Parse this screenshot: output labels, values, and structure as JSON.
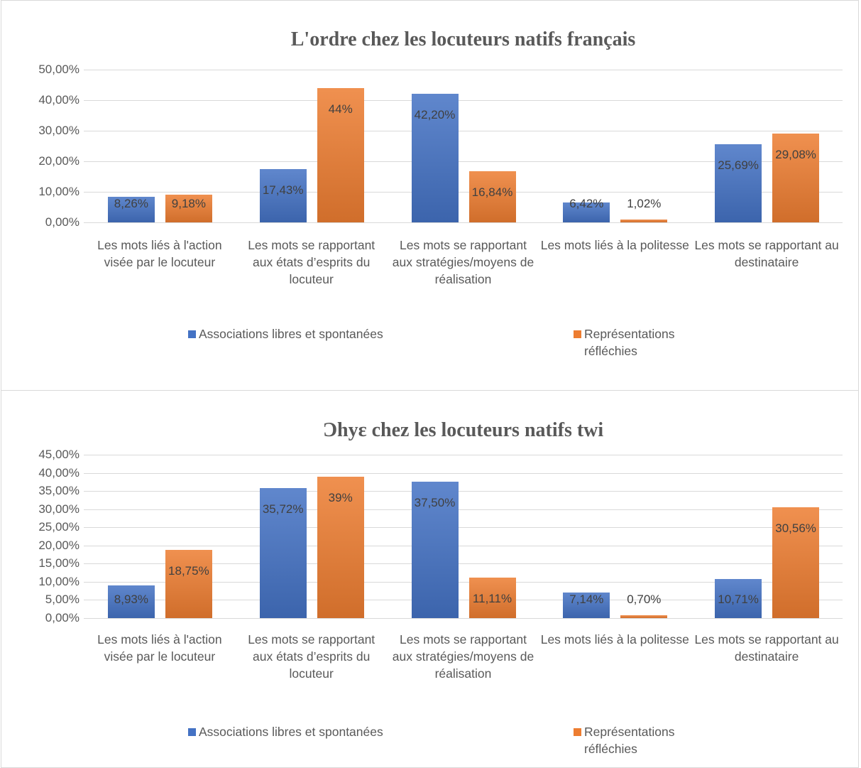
{
  "chart_data": [
    {
      "type": "bar",
      "title": "L'ordre chez les locuteurs natifs français",
      "categories": [
        "Les mots liés à l'action visée par le locuteur",
        "Les mots se rapportant aux états d’esprits du locuteur",
        "Les mots se rapportant aux stratégies/moyens de réalisation",
        "Les mots liés à la politesse",
        "Les mots se rapportant au destinataire"
      ],
      "series": [
        {
          "name": "Associations libres et spontanées",
          "color": "#4472c4",
          "values": [
            8.26,
            17.43,
            42.2,
            6.42,
            25.69
          ],
          "value_labels": [
            "8,26%",
            "17,43%",
            "42,20%",
            "6,42%",
            "25,69%"
          ]
        },
        {
          "name": "Représentations réfléchies",
          "color": "#ed7d31",
          "values": [
            9.18,
            44,
            16.84,
            1.02,
            29.08
          ],
          "value_labels": [
            "9,18%",
            "44%",
            "16,84%",
            "1,02%",
            "29,08%"
          ]
        }
      ],
      "ylim": [
        0,
        50
      ],
      "yticks": [
        {
          "value": 0,
          "label": "0,00%"
        },
        {
          "value": 10,
          "label": "10,00%"
        },
        {
          "value": 20,
          "label": "20,00%"
        },
        {
          "value": 30,
          "label": "30,00%"
        },
        {
          "value": 40,
          "label": "40,00%"
        },
        {
          "value": 50,
          "label": "50,00%"
        }
      ],
      "grid": true,
      "legend": "bottom"
    },
    {
      "type": "bar",
      "title": "Ɔhyɛ chez les locuteurs natifs twi",
      "categories": [
        "Les mots liés à l'action visée par le locuteur",
        "Les mots se rapportant aux états d’esprits du locuteur",
        "Les mots se rapportant aux stratégies/moyens de réalisation",
        "Les mots liés à la politesse",
        "Les mots se rapportant au destinataire"
      ],
      "series": [
        {
          "name": "Associations libres et spontanées",
          "color": "#4472c4",
          "values": [
            8.93,
            35.72,
            37.5,
            7.14,
            10.71
          ],
          "value_labels": [
            "8,93%",
            "35,72%",
            "37,50%",
            "7,14%",
            "10,71%"
          ]
        },
        {
          "name": "Représentations réfléchies",
          "color": "#ed7d31",
          "values": [
            18.75,
            39,
            11.11,
            0.7,
            30.56
          ],
          "value_labels": [
            "18,75%",
            "39%",
            "11,11%",
            "0,70%",
            "30,56%"
          ]
        }
      ],
      "ylim": [
        0,
        45
      ],
      "yticks": [
        {
          "value": 0,
          "label": "0,00%"
        },
        {
          "value": 5,
          "label": "5,00%"
        },
        {
          "value": 10,
          "label": "10,00%"
        },
        {
          "value": 15,
          "label": "15,00%"
        },
        {
          "value": 20,
          "label": "20,00%"
        },
        {
          "value": 25,
          "label": "25,00%"
        },
        {
          "value": 30,
          "label": "30,00%"
        },
        {
          "value": 35,
          "label": "35,00%"
        },
        {
          "value": 40,
          "label": "40,00%"
        },
        {
          "value": 45,
          "label": "45,00%"
        }
      ],
      "grid": true,
      "legend": "bottom"
    }
  ]
}
